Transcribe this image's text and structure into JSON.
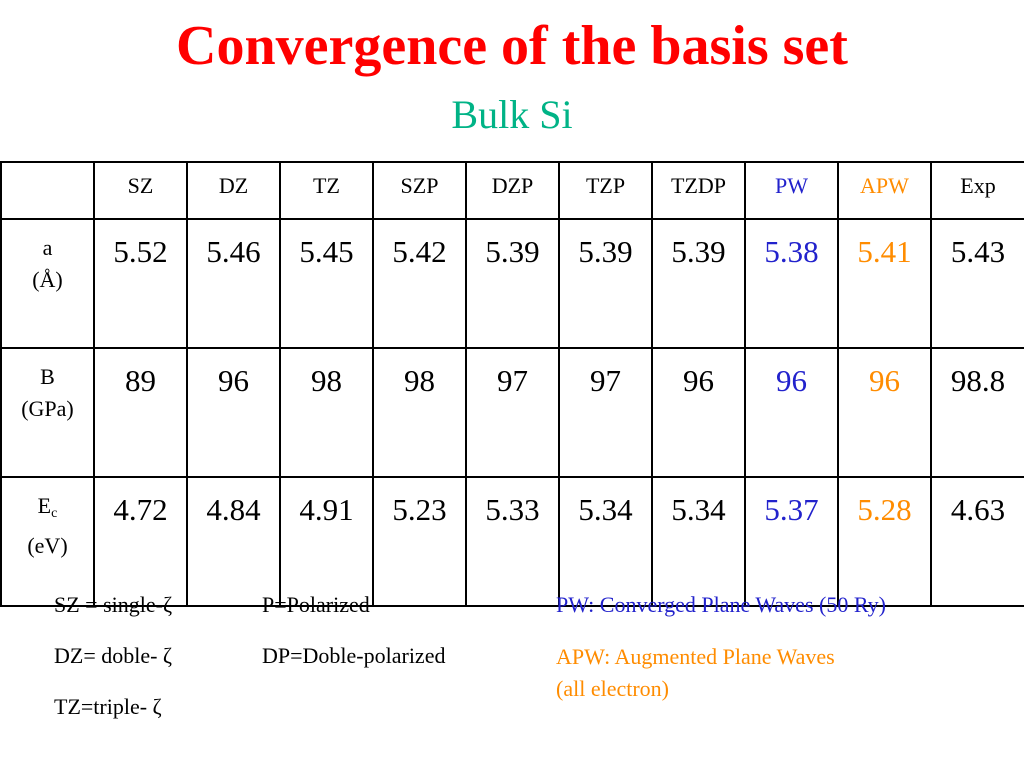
{
  "slide": {
    "title": "Convergence of the basis set",
    "subtitle": "Bulk Si"
  },
  "colors": {
    "title": "#ff0000",
    "subtitle": "#00b386",
    "pw": "#2222cc",
    "apw": "#ff8c00"
  },
  "table": {
    "columns": [
      "SZ",
      "DZ",
      "TZ",
      "SZP",
      "DZP",
      "TZP",
      "TZDP",
      "PW",
      "APW",
      "Exp"
    ],
    "rows": [
      {
        "label_top": "a",
        "label_sub": "",
        "label_unit": "(Å)",
        "values": [
          "5.52",
          "5.46",
          "5.45",
          "5.42",
          "5.39",
          "5.39",
          "5.39",
          "5.38",
          "5.41",
          "5.43"
        ]
      },
      {
        "label_top": "B",
        "label_sub": "",
        "label_unit": "(GPa)",
        "values": [
          "89",
          "96",
          "98",
          "98",
          "97",
          "97",
          "96",
          "96",
          "96",
          "98.8"
        ]
      },
      {
        "label_top": "E",
        "label_sub": "c",
        "label_unit": "(eV)",
        "values": [
          "4.72",
          "4.84",
          "4.91",
          "5.23",
          "5.33",
          "5.34",
          "5.34",
          "5.37",
          "5.28",
          "4.63"
        ]
      }
    ]
  },
  "notes": {
    "col1": [
      "SZ = single-ζ",
      "DZ= doble- ζ",
      "TZ=triple- ζ"
    ],
    "col2": [
      "P=Polarized",
      "DP=Doble-polarized"
    ],
    "pw_note": "PW: Converged Plane Waves (50 Ry)",
    "apw_note_line1": "APW: Augmented Plane Waves",
    "apw_note_line2": "(all electron)"
  }
}
